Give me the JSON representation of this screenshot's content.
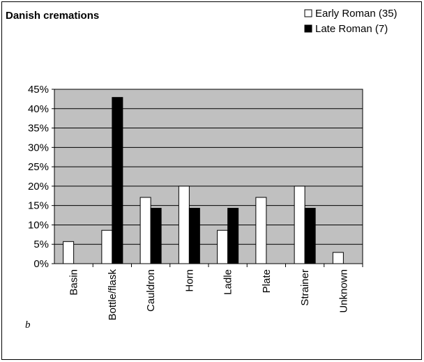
{
  "chart_data": {
    "type": "bar",
    "title": "Danish cremations",
    "annotation": "b",
    "categories": [
      "Basin",
      "Bottle/flask",
      "Cauldron",
      "Horn",
      "Ladle",
      "Plate",
      "Strainer",
      "Unknown"
    ],
    "series": [
      {
        "name": "Early Roman (35)",
        "color": "#ffffff",
        "values": [
          5.7,
          8.6,
          17.1,
          20,
          8.6,
          17.1,
          20,
          2.9
        ]
      },
      {
        "name": "Late Roman (7)",
        "color": "#000000",
        "values": [
          0,
          42.9,
          14.3,
          14.3,
          14.3,
          0,
          14.3,
          0
        ]
      }
    ],
    "ylim": [
      0,
      45
    ],
    "yticks": [
      {
        "value": 0,
        "label": "0%"
      },
      {
        "value": 5,
        "label": "5%"
      },
      {
        "value": 10,
        "label": "10%"
      },
      {
        "value": 15,
        "label": "15%"
      },
      {
        "value": 20,
        "label": "20%"
      },
      {
        "value": 25,
        "label": "25%"
      },
      {
        "value": 30,
        "label": "30%"
      },
      {
        "value": 35,
        "label": "35%"
      },
      {
        "value": 40,
        "label": "40%"
      },
      {
        "value": 45,
        "label": "45%"
      }
    ],
    "grid": true,
    "plot_background": "#c0c0c0",
    "legend": "top-right"
  }
}
